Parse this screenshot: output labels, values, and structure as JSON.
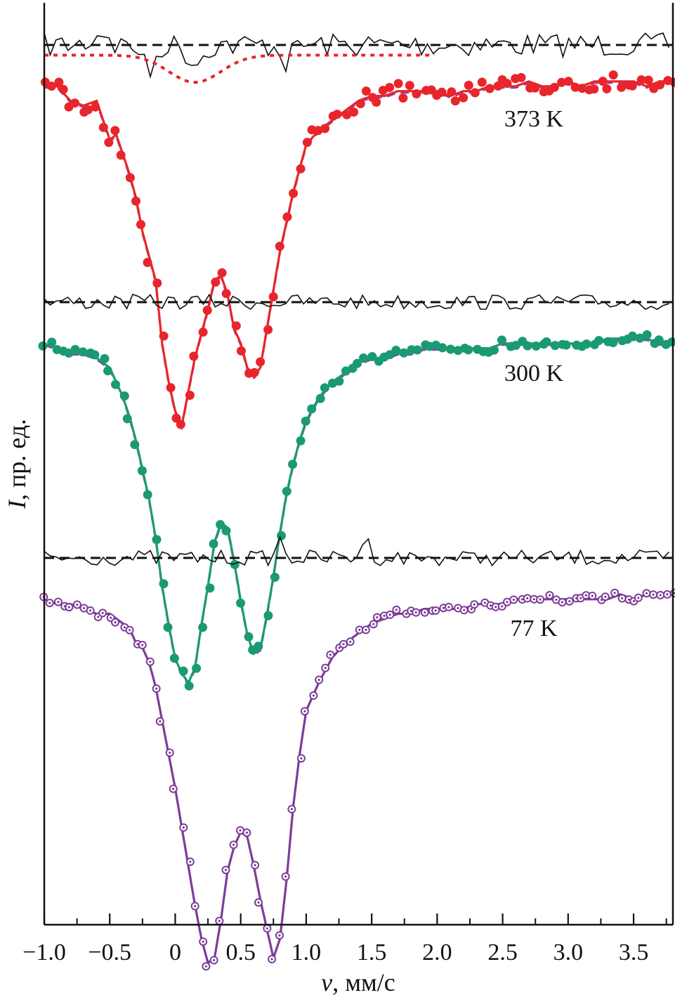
{
  "chart_data": {
    "type": "line",
    "title": "",
    "xlabel_symbol": "v",
    "xlabel_unit": ", мм/с",
    "ylabel_symbol": "I",
    "ylabel_unit": ", пр. ед.",
    "xlim": [
      -1.0,
      3.8
    ],
    "ylim": [
      -2.28,
      0.1
    ],
    "xticks": [
      -1.0,
      -0.5,
      0,
      0.5,
      1.0,
      1.5,
      2.0,
      2.5,
      3.0,
      3.5
    ],
    "xtick_labels": [
      "−1.0",
      "−0.5",
      "0",
      "0.5",
      "1.0",
      "1.5",
      "2.0",
      "2.5",
      "3.0",
      "3.5"
    ],
    "series": [
      {
        "name": "373 K",
        "label": "373 K",
        "color": "#e8252b",
        "marker": "filled-circle",
        "baseline": 0,
        "fit_color": "#e8252b",
        "component_color": "#8e44ad",
        "residual_dip": {
          "center": 0.15,
          "width": 0.28,
          "depth": 0.04
        },
        "pseudo_points": [
          [
            -1.0,
            -0.02
          ],
          [
            -0.9,
            -0.02
          ],
          [
            -0.8,
            -0.05
          ],
          [
            -0.7,
            -0.06
          ],
          [
            -0.6,
            -0.05
          ],
          [
            -0.5,
            -0.13
          ],
          [
            -0.45,
            -0.12
          ],
          [
            -0.4,
            -0.16
          ],
          [
            -0.35,
            -0.2
          ],
          [
            -0.3,
            -0.25
          ],
          [
            -0.25,
            -0.32
          ],
          [
            -0.2,
            -0.37
          ],
          [
            -0.15,
            -0.42
          ],
          [
            -0.1,
            -0.55
          ],
          [
            -0.05,
            -0.63
          ],
          [
            0,
            -0.69
          ],
          [
            0.05,
            -0.72
          ],
          [
            0.1,
            -0.65
          ],
          [
            0.15,
            -0.58
          ],
          [
            0.2,
            -0.53
          ],
          [
            0.25,
            -0.48
          ],
          [
            0.3,
            -0.42
          ],
          [
            0.35,
            -0.41
          ],
          [
            0.4,
            -0.45
          ],
          [
            0.45,
            -0.52
          ],
          [
            0.5,
            -0.55
          ],
          [
            0.55,
            -0.6
          ],
          [
            0.6,
            -0.62
          ],
          [
            0.65,
            -0.6
          ],
          [
            0.7,
            -0.52
          ],
          [
            0.75,
            -0.44
          ],
          [
            0.8,
            -0.36
          ],
          [
            0.85,
            -0.3
          ],
          [
            0.9,
            -0.24
          ],
          [
            0.95,
            -0.19
          ],
          [
            1.0,
            -0.14
          ],
          [
            1.1,
            -0.11
          ],
          [
            1.2,
            -0.09
          ],
          [
            1.3,
            -0.07
          ],
          [
            1.4,
            -0.05
          ],
          [
            1.5,
            -0.04
          ],
          [
            1.6,
            -0.04
          ],
          [
            1.7,
            -0.03
          ],
          [
            1.8,
            -0.03
          ],
          [
            1.9,
            -0.03
          ],
          [
            2.0,
            -0.03
          ],
          [
            2.1,
            -0.04
          ],
          [
            2.2,
            -0.03
          ],
          [
            2.3,
            -0.03
          ],
          [
            2.4,
            -0.02
          ],
          [
            2.5,
            -0.02
          ],
          [
            2.6,
            -0.02
          ],
          [
            2.7,
            -0.01
          ],
          [
            2.8,
            -0.02
          ],
          [
            2.9,
            -0.02
          ],
          [
            3.0,
            -0.01
          ],
          [
            3.1,
            -0.02
          ],
          [
            3.2,
            -0.01
          ],
          [
            3.3,
            -0.01
          ],
          [
            3.4,
            -0.01
          ],
          [
            3.5,
            -0.01
          ],
          [
            3.6,
            -0.02
          ],
          [
            3.7,
            -0.01
          ]
        ]
      },
      {
        "name": "300 K",
        "label": "300 K",
        "color": "#1a9a73",
        "marker": "filled-circle",
        "baseline": 0,
        "fit_color": "#1a9a73",
        "component_color": "#8e44ad",
        "pseudo_points": [
          [
            -1.0,
            -0.02
          ],
          [
            -0.9,
            -0.03
          ],
          [
            -0.8,
            -0.04
          ],
          [
            -0.7,
            -0.04
          ],
          [
            -0.6,
            -0.05
          ],
          [
            -0.5,
            -0.07
          ],
          [
            -0.45,
            -0.1
          ],
          [
            -0.4,
            -0.13
          ],
          [
            -0.35,
            -0.17
          ],
          [
            -0.3,
            -0.22
          ],
          [
            -0.25,
            -0.28
          ],
          [
            -0.2,
            -0.34
          ],
          [
            -0.15,
            -0.42
          ],
          [
            -0.1,
            -0.52
          ],
          [
            -0.05,
            -0.6
          ],
          [
            0,
            -0.67
          ],
          [
            0.05,
            -0.7
          ],
          [
            0.1,
            -0.72
          ],
          [
            0.15,
            -0.69
          ],
          [
            0.2,
            -0.6
          ],
          [
            0.25,
            -0.52
          ],
          [
            0.3,
            -0.43
          ],
          [
            0.35,
            -0.39
          ],
          [
            0.4,
            -0.4
          ],
          [
            0.45,
            -0.47
          ],
          [
            0.5,
            -0.55
          ],
          [
            0.55,
            -0.62
          ],
          [
            0.6,
            -0.66
          ],
          [
            0.65,
            -0.65
          ],
          [
            0.7,
            -0.58
          ],
          [
            0.75,
            -0.5
          ],
          [
            0.8,
            -0.41
          ],
          [
            0.85,
            -0.33
          ],
          [
            0.9,
            -0.27
          ],
          [
            0.95,
            -0.22
          ],
          [
            1.0,
            -0.18
          ],
          [
            1.1,
            -0.13
          ],
          [
            1.2,
            -0.1
          ],
          [
            1.3,
            -0.08
          ],
          [
            1.4,
            -0.06
          ],
          [
            1.5,
            -0.05
          ],
          [
            1.6,
            -0.05
          ],
          [
            1.7,
            -0.04
          ],
          [
            1.8,
            -0.04
          ],
          [
            1.9,
            -0.03
          ],
          [
            2.0,
            -0.03
          ],
          [
            2.1,
            -0.03
          ],
          [
            2.2,
            -0.03
          ],
          [
            2.3,
            -0.03
          ],
          [
            2.4,
            -0.03
          ],
          [
            2.5,
            -0.02
          ],
          [
            2.6,
            -0.02
          ],
          [
            2.7,
            -0.02
          ],
          [
            2.8,
            -0.02
          ],
          [
            2.9,
            -0.02
          ],
          [
            3.0,
            -0.02
          ],
          [
            3.1,
            -0.02
          ],
          [
            3.2,
            -0.02
          ],
          [
            3.3,
            -0.01
          ],
          [
            3.4,
            -0.01
          ],
          [
            3.5,
            -0.01
          ],
          [
            3.6,
            -0.01
          ],
          [
            3.7,
            -0.02
          ]
        ]
      },
      {
        "name": "77 K",
        "label": "77 K",
        "color": "#7d3c98",
        "marker": "open-dotted-circle",
        "baseline": 0,
        "fit_color": "#7d3c98",
        "pseudo_points": [
          [
            -1.0,
            -0.02
          ],
          [
            -0.9,
            -0.03
          ],
          [
            -0.8,
            -0.03
          ],
          [
            -0.7,
            -0.04
          ],
          [
            -0.6,
            -0.05
          ],
          [
            -0.5,
            -0.05
          ],
          [
            -0.45,
            -0.06
          ],
          [
            -0.4,
            -0.07
          ],
          [
            -0.35,
            -0.08
          ],
          [
            -0.3,
            -0.11
          ],
          [
            -0.25,
            -0.12
          ],
          [
            -0.2,
            -0.15
          ],
          [
            -0.15,
            -0.2
          ],
          [
            -0.1,
            -0.27
          ],
          [
            -0.05,
            -0.34
          ],
          [
            0,
            -0.41
          ],
          [
            0.05,
            -0.49
          ],
          [
            0.1,
            -0.57
          ],
          [
            0.15,
            -0.65
          ],
          [
            0.2,
            -0.72
          ],
          [
            0.25,
            -0.77
          ],
          [
            0.3,
            -0.76
          ],
          [
            0.35,
            -0.68
          ],
          [
            0.4,
            -0.58
          ],
          [
            0.45,
            -0.53
          ],
          [
            0.5,
            -0.5
          ],
          [
            0.55,
            -0.51
          ],
          [
            0.6,
            -0.57
          ],
          [
            0.65,
            -0.64
          ],
          [
            0.7,
            -0.7
          ],
          [
            0.75,
            -0.76
          ],
          [
            0.8,
            -0.72
          ],
          [
            0.85,
            -0.6
          ],
          [
            0.9,
            -0.45
          ],
          [
            0.95,
            -0.34
          ],
          [
            1.0,
            -0.25
          ],
          [
            1.1,
            -0.19
          ],
          [
            1.2,
            -0.14
          ],
          [
            1.3,
            -0.11
          ],
          [
            1.4,
            -0.09
          ],
          [
            1.5,
            -0.07
          ],
          [
            1.6,
            -0.06
          ],
          [
            1.7,
            -0.05
          ],
          [
            1.8,
            -0.05
          ],
          [
            1.9,
            -0.04
          ],
          [
            2.0,
            -0.04
          ],
          [
            2.1,
            -0.04
          ],
          [
            2.2,
            -0.04
          ],
          [
            2.3,
            -0.03
          ],
          [
            2.4,
            -0.03
          ],
          [
            2.5,
            -0.03
          ],
          [
            2.6,
            -0.02
          ],
          [
            2.7,
            -0.02
          ],
          [
            2.8,
            -0.02
          ],
          [
            2.9,
            -0.02
          ],
          [
            3.0,
            -0.02
          ],
          [
            3.1,
            -0.02
          ],
          [
            3.2,
            -0.02
          ],
          [
            3.3,
            -0.02
          ],
          [
            3.4,
            -0.01
          ],
          [
            3.5,
            -0.02
          ],
          [
            3.6,
            -0.01
          ],
          [
            3.7,
            -0.01
          ]
        ]
      }
    ],
    "residual_color": "#111111",
    "baseline_style": "dashed-black",
    "legend": "labels placed to the right of each spectrum"
  }
}
